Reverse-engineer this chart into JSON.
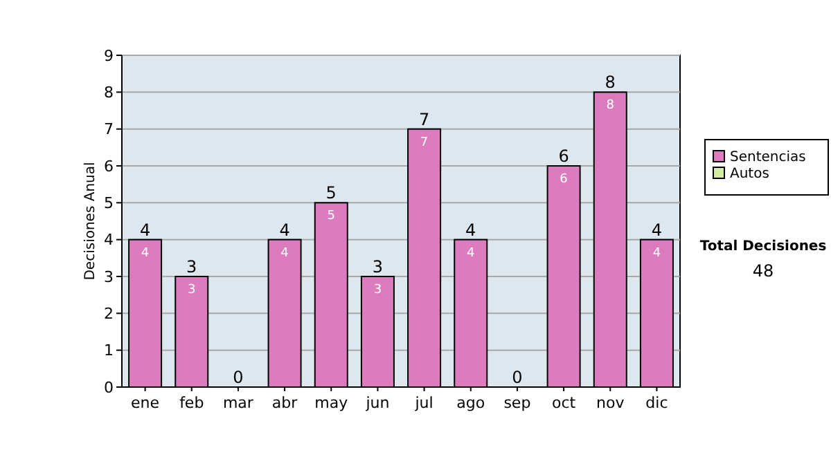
{
  "chart_data": {
    "type": "bar",
    "ylabel": "Decisiones Anual",
    "categories": [
      "ene",
      "feb",
      "mar",
      "abr",
      "may",
      "jun",
      "jul",
      "ago",
      "sep",
      "oct",
      "nov",
      "dic"
    ],
    "series": [
      {
        "name": "Sentencias",
        "color": "#dc7cbe",
        "values": [
          4,
          3,
          0,
          4,
          5,
          3,
          7,
          4,
          0,
          6,
          8,
          4
        ],
        "value_labels": [
          "4",
          "3",
          null,
          "4",
          "5",
          "3",
          "7",
          "4",
          null,
          "6",
          "8",
          "4"
        ]
      },
      {
        "name": "Autos",
        "color": "#d4eca0",
        "values": [
          0,
          0,
          0,
          0,
          0,
          0,
          0,
          0,
          0,
          0,
          0,
          0
        ]
      }
    ],
    "stacked": true,
    "totals": [
      "4",
      "3",
      "0",
      "4",
      "5",
      "3",
      "7",
      "4",
      "0",
      "6",
      "8",
      "4"
    ],
    "ylim": [
      0,
      9
    ],
    "yticks": [
      0,
      1,
      2,
      3,
      4,
      5,
      6,
      7,
      8,
      9
    ],
    "grid": "y",
    "legend": "right",
    "annotations": [
      "Total Decisiones",
      "48"
    ]
  }
}
